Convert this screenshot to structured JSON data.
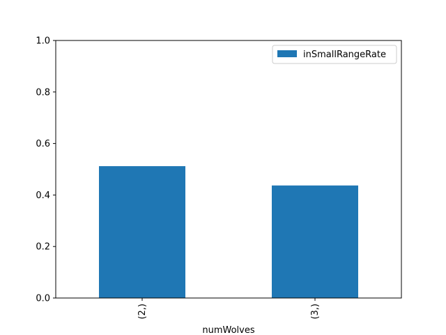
{
  "chart_data": {
    "type": "bar",
    "categories": [
      "(2,)",
      "(3,)"
    ],
    "series": [
      {
        "name": "inSmallRangeRate",
        "values": [
          0.512,
          0.437
        ],
        "color": "#1f77b4"
      }
    ],
    "xlabel": "numWolves",
    "ylabel": "",
    "ylim": [
      0,
      1.0
    ],
    "yticks": [
      0.0,
      0.2,
      0.4,
      0.6,
      0.8,
      1.0
    ],
    "ytick_labels": [
      "0.0",
      "0.2",
      "0.4",
      "0.6",
      "0.8",
      "1.0"
    ],
    "grid": false,
    "legend_position": "top-right"
  }
}
